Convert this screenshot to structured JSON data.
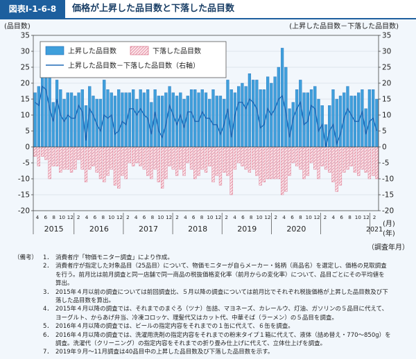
{
  "figure": {
    "label": "図表Ⅰ-1-6-8",
    "title": "価格が上昇した品目数と下落した品目数"
  },
  "chart_data": {
    "type": "bar+line",
    "left_axis_title": "(品目数)",
    "right_axis_title": "(上昇した品目数－下落した品目数)",
    "ylim": [
      -20,
      35
    ],
    "yticks": [
      35,
      30,
      25,
      20,
      15,
      10,
      5,
      0,
      -5,
      -10,
      -15,
      -20
    ],
    "legend": {
      "up": "上昇した品目数",
      "down": "下落した品目数",
      "net": "上昇した品目数－下落した品目数（右軸）"
    },
    "x_month_unit": "(月)",
    "x_year_unit": "(年)",
    "x_axis_title": "（調査年月）",
    "years": [
      "2015",
      "2016",
      "2017",
      "2018",
      "2019",
      "2020",
      "2021"
    ],
    "month_labels": [
      "4",
      "6",
      "8",
      "10",
      "12",
      "2",
      "4",
      "6",
      "8",
      "10",
      "12",
      "2",
      "4",
      "6",
      "8",
      "10",
      "12",
      "2",
      "4",
      "6",
      "8",
      "10",
      "12",
      "2",
      "4",
      "6",
      "8",
      "10",
      "12",
      "2",
      "4",
      "6",
      "8",
      "10",
      "12",
      "2",
      "4",
      "6",
      "8",
      "10",
      "12",
      "2"
    ],
    "up_values": [
      17,
      19,
      22,
      22,
      22,
      14,
      21,
      18,
      15,
      17,
      17,
      16,
      17,
      18,
      13,
      19,
      16,
      15,
      15,
      21,
      18,
      17,
      16,
      18,
      17,
      17,
      17,
      18,
      15,
      18,
      17,
      18,
      14,
      18,
      16,
      16,
      17,
      19,
      17,
      16,
      17,
      15,
      16,
      18,
      18,
      17,
      18,
      17,
      15,
      18,
      16,
      16,
      15,
      21,
      18,
      17,
      19,
      20,
      19,
      23,
      21,
      21,
      18,
      18,
      22,
      20,
      22,
      25,
      31,
      25,
      12,
      14,
      18,
      21,
      17,
      17,
      18,
      19,
      15,
      13,
      7,
      13,
      18,
      15,
      16,
      17,
      19,
      16,
      16,
      17,
      18,
      12,
      18,
      18,
      15
    ],
    "down_values": [
      -3,
      -6,
      -3,
      -4,
      -10,
      -6,
      -6,
      -8,
      -7,
      -7,
      -8,
      -7,
      -4,
      -7,
      -11,
      -7,
      -6,
      -8,
      -10,
      -11,
      -9,
      -7,
      -12,
      -13,
      -9,
      -10,
      -5,
      -6,
      -5,
      -6,
      -7,
      -9,
      -10,
      -7,
      -11,
      -13,
      -10,
      -6,
      -7,
      -9,
      -7,
      -9,
      -5,
      -7,
      -10,
      -9,
      -7,
      -8,
      -6,
      -11,
      -9,
      -12,
      -8,
      -9,
      -15,
      -7,
      -5,
      -6,
      -7,
      -8,
      -7,
      -9,
      -12,
      -11,
      -10,
      -10,
      -10,
      -10,
      -15,
      -14,
      -9,
      -5,
      -6,
      -7,
      -10,
      -9,
      -5,
      -7,
      -10,
      -6,
      -7,
      -8,
      -11,
      -14,
      -12,
      -8,
      -7,
      -6,
      -8,
      -9,
      -7,
      -8,
      -10,
      -9,
      -10
    ],
    "net_values": [
      14,
      13,
      19,
      18,
      12,
      8,
      15,
      10,
      8,
      10,
      9,
      9,
      13,
      11,
      2,
      12,
      10,
      7,
      5,
      10,
      9,
      10,
      4,
      5,
      8,
      7,
      12,
      12,
      10,
      12,
      10,
      9,
      4,
      11,
      5,
      3,
      7,
      13,
      10,
      7,
      10,
      6,
      11,
      11,
      8,
      8,
      11,
      9,
      9,
      7,
      7,
      4,
      7,
      12,
      3,
      10,
      14,
      14,
      12,
      15,
      14,
      12,
      6,
      7,
      12,
      10,
      12,
      15,
      16,
      11,
      3,
      9,
      12,
      14,
      7,
      8,
      13,
      12,
      5,
      7,
      0,
      5,
      7,
      1,
      4,
      9,
      12,
      10,
      8,
      8,
      11,
      4,
      8,
      9,
      5
    ]
  },
  "notes": {
    "head": "（備考）",
    "items": [
      {
        "num": "1．",
        "lines": [
          "消費者庁「物価モニター調査」により作成。"
        ]
      },
      {
        "num": "2．",
        "lines": [
          "消費者庁が指定した対象品目（25品目）について、物価モニターが自らメーカー・銘柄（商品名）を選定し、価格の見取調査",
          "を行う。前月比は前月調査と同一店舗で同一商品の税抜価格変化率（前月からの変化率）について、品目ごとにその平均値を",
          "算出。"
        ]
      },
      {
        "num": "3．",
        "lines": [
          "2015年４月以前の調査については前回調査比、５月以降の調査については前月比でそれぞれ税抜価格が上昇した品目数及び下",
          "落した品目数を算出。"
        ]
      },
      {
        "num": "4．",
        "lines": [
          "2015年４月以降の調査では、それまでのまぐろ（ツナ）缶詰、マヨネーズ、カレールウ、灯油、ガソリンの５品目に代えて、",
          "ヨーグルト、からあげ弁当、冷凍コロッケ、理髪代又はカット代、中華そば（ラーメン）の５品目を調査。"
        ]
      },
      {
        "num": "5．",
        "lines": [
          "2016年４月以降の調査では、ビールの指定内容をそれまでの１缶に代えて、６缶を調査。"
        ]
      },
      {
        "num": "6．",
        "lines": [
          "2016年４月以降の調査では、洗濯用洗剤の指定内容をそれまでの粉末タイプ１箱に代えて、液体（詰め替え・770～850g）を",
          "調査。洗濯代（クリーニング）の指定内容をそれまでの折り畳み仕上げに代えて、立体仕上げを調査。"
        ]
      },
      {
        "num": "7．",
        "lines": [
          "2019年９月～11月調査は40品目中の上昇した品目数及び下落した品目数を示す。"
        ]
      }
    ]
  }
}
